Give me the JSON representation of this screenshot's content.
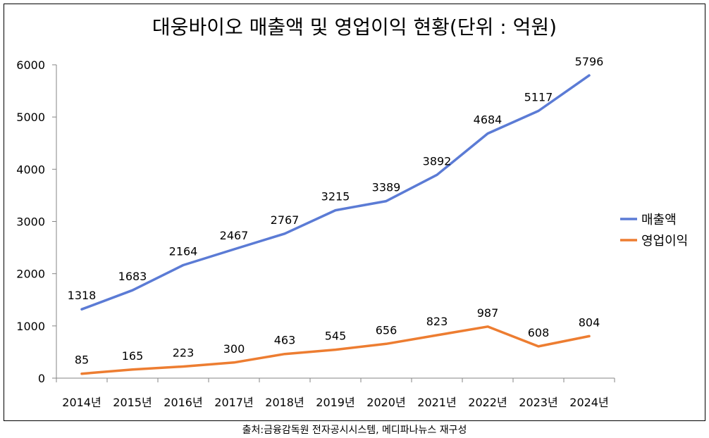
{
  "chart_data": {
    "type": "line",
    "title": "대웅바이오 매출액 및 영업이익 현황(단위 : 억원)",
    "categories": [
      "2014년",
      "2015년",
      "2016년",
      "2017년",
      "2018년",
      "2019년",
      "2020년",
      "2021년",
      "2022년",
      "2023년",
      "2024년"
    ],
    "series": [
      {
        "name": "매출액",
        "values": [
          1318,
          1683,
          2164,
          2467,
          2767,
          3215,
          3389,
          3892,
          4684,
          5117,
          5796
        ],
        "color": "#5b7bd5"
      },
      {
        "name": "영업이익",
        "values": [
          85,
          165,
          223,
          300,
          463,
          545,
          656,
          823,
          987,
          608,
          804
        ],
        "color": "#ed7d31"
      }
    ],
    "ylim": [
      0,
      6000
    ],
    "yticks": [
      0,
      1000,
      2000,
      3000,
      4000,
      5000,
      6000
    ],
    "grid": false,
    "legend": "right",
    "data_labels": true
  },
  "source_note": "출처:금융감독원 전자공시시스템, 메디파나뉴스 재구성"
}
